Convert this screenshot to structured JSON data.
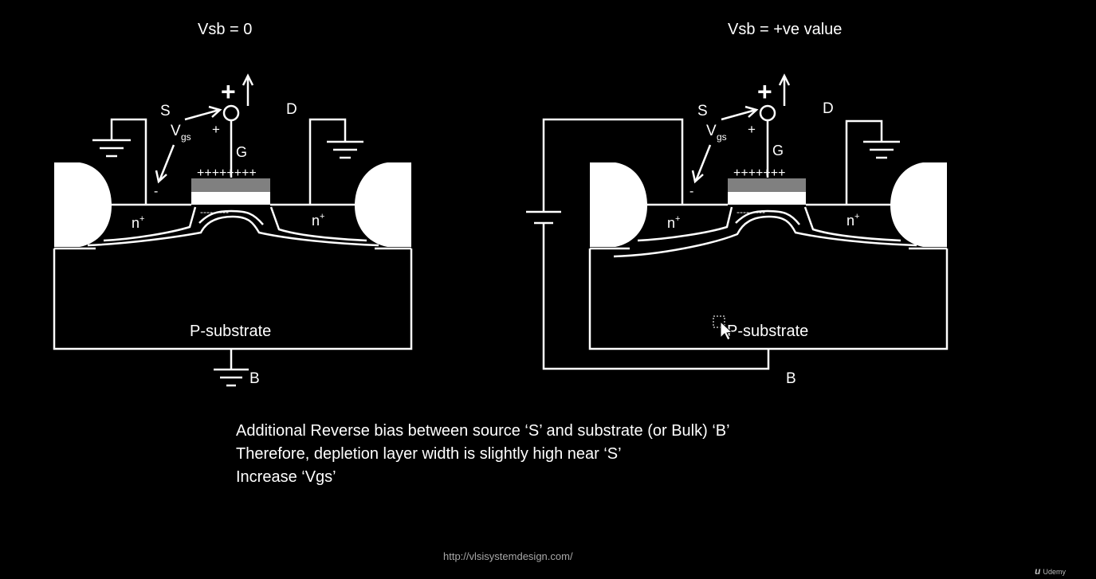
{
  "left": {
    "title": "Vsb = 0",
    "source": "S",
    "drain": "D",
    "gate": "G",
    "vgs_main": "V",
    "vgs_sub": "gs",
    "plus_sign": "+",
    "minus_sign": "-",
    "gate_plus": "+",
    "gate_charges": "++++++++",
    "channel_charges": "---------",
    "n_left": "n",
    "n_right": "n",
    "n_sup": "+",
    "substrate": "P-substrate",
    "bulk": "B"
  },
  "right": {
    "title": "Vsb = +ve value",
    "source": "S",
    "drain": "D",
    "gate": "G",
    "vgs_main": "V",
    "vgs_sub": "gs",
    "plus_sign": "+",
    "minus_sign": "-",
    "gate_plus": "+",
    "gate_charges": "+++++++",
    "channel_charges": "---------",
    "n_left": "n",
    "n_right": "n",
    "n_sup": "+",
    "substrate": "P-substrate",
    "bulk": "B"
  },
  "caption": {
    "line1": "Additional Reverse bias between source ‘S’ and substrate (or Bulk) ‘B’",
    "line2": "Therefore, depletion layer width is slightly high near ‘S’",
    "line3": "Increase ‘Vgs’"
  },
  "footer": {
    "url": "http://vlsisystemdesign.com/",
    "brand_mark": "u",
    "brand": "Udemy"
  },
  "colors": {
    "background": "#000000",
    "lines": "#ffffff",
    "gate_oxide": "#808080"
  }
}
